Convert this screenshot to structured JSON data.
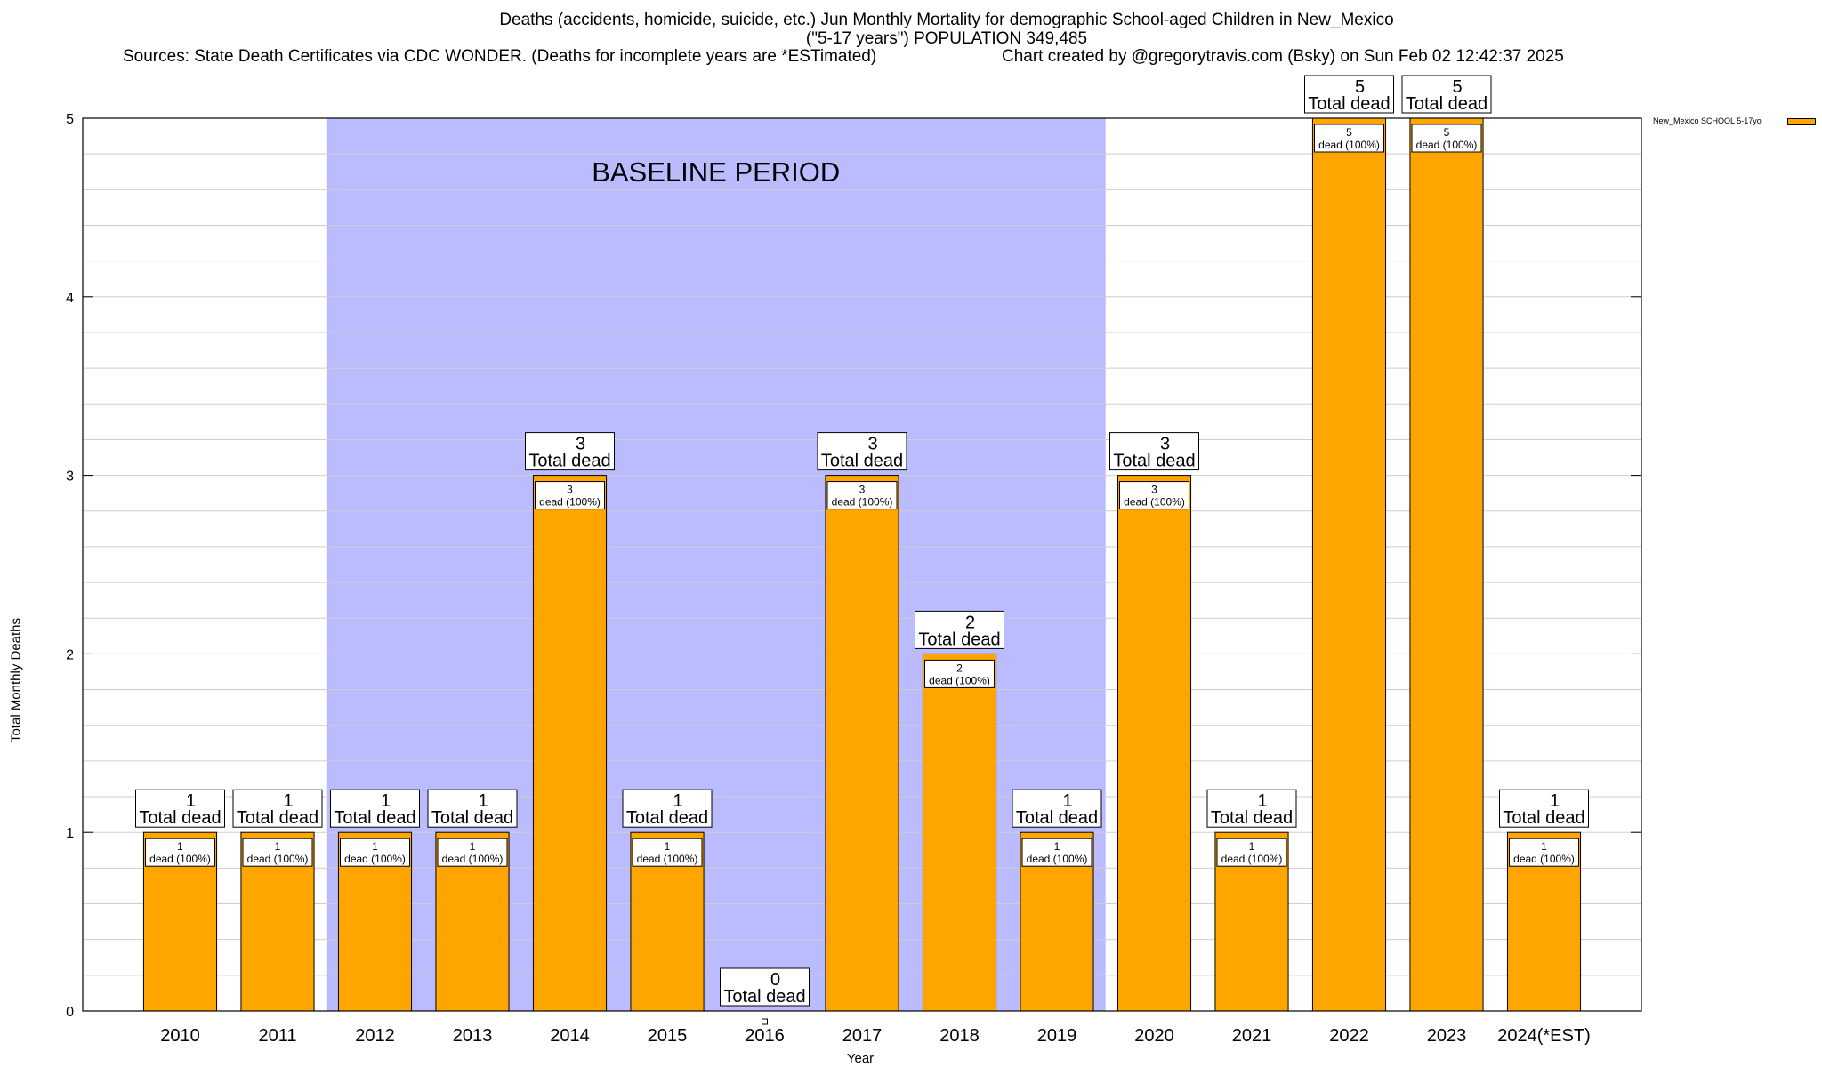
{
  "header": {
    "title_line1": "Deaths (accidents, homicide, suicide, etc.) Jun Monthly Mortality for demographic School-aged Children in New_Mexico",
    "title_line2": "(\"5-17 years\") POPULATION 349,485",
    "sources": "Sources: State Death Certificates via CDC WONDER. (Deaths for incomplete years are *ESTimated)",
    "credit": "Chart created by @gregorytravis.com (Bsky) on Sun Feb 02 12:42:37 2025"
  },
  "legend": {
    "label": "New_Mexico SCHOOL 5-17yo",
    "color": "#ffa500"
  },
  "chart_data": {
    "type": "bar",
    "title": "Deaths (accidents, homicide, suicide, etc.) Jun Monthly Mortality for demographic School-aged Children in New_Mexico",
    "xlabel": "Year",
    "ylabel": "Total Monthly Deaths",
    "ylim": [
      0,
      5
    ],
    "yticks": [
      0,
      1,
      2,
      3,
      4,
      5
    ],
    "grid": true,
    "legend_position": "top-right",
    "categories": [
      "2010",
      "2011",
      "2012",
      "2013",
      "2014",
      "2015",
      "2016",
      "2017",
      "2018",
      "2019",
      "2020",
      "2021",
      "2022",
      "2023",
      "2024(*EST)"
    ],
    "series": [
      {
        "name": "New_Mexico SCHOOL 5-17yo",
        "color": "#ffa500",
        "values": [
          1,
          1,
          1,
          1,
          3,
          1,
          0,
          3,
          2,
          1,
          3,
          1,
          5,
          5,
          1
        ]
      }
    ],
    "total_label_suffix": "Total dead",
    "inner_label_suffix": "dead (100%)",
    "baseline_period": {
      "label": "BASELINE PERIOD",
      "from": "2012",
      "to": "2019",
      "color": "#bbbbff"
    }
  }
}
